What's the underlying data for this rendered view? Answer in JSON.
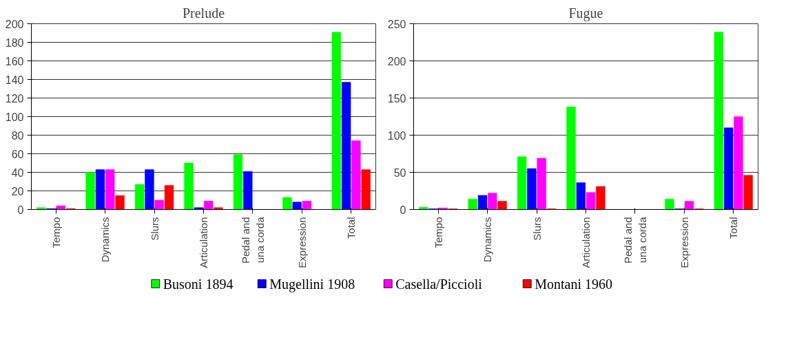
{
  "chart_data": [
    {
      "type": "bar",
      "title": "Prelude",
      "categories": [
        "Tempo",
        "Dynamics",
        "Slurs",
        "Articulation",
        "Pedal and una corda",
        "Expression",
        "Total"
      ],
      "series": [
        {
          "name": "Busoni 1894",
          "color": "#00ff00",
          "values": [
            2,
            40,
            27,
            50,
            59,
            13,
            191
          ]
        },
        {
          "name": "Mugellini 1908",
          "color": "#0000ff",
          "values": [
            1,
            43,
            43,
            2,
            41,
            8,
            137
          ]
        },
        {
          "name": "Casella/Piccioli",
          "color": "#ff00ff",
          "values": [
            4,
            43,
            10,
            9,
            0,
            9,
            74
          ]
        },
        {
          "name": "Montani 1960",
          "color": "#ff0000",
          "values": [
            1,
            15,
            26,
            2,
            0,
            0,
            43
          ]
        }
      ],
      "ylim": [
        0,
        200
      ],
      "yticks": [
        0,
        20,
        40,
        60,
        80,
        100,
        120,
        140,
        160,
        180,
        200
      ],
      "grid": "y",
      "legend": "bottom"
    },
    {
      "type": "bar",
      "title": "Fugue",
      "categories": [
        "Tempo",
        "Dynamics",
        "Slurs",
        "Articulation",
        "Pedal and una corda",
        "Expression",
        "Total"
      ],
      "series": [
        {
          "color": "#00ff00",
          "values": [
            3,
            14,
            71,
            138,
            0,
            14,
            239
          ]
        },
        {
          "color": "#0000ff",
          "values": [
            1,
            19,
            55,
            36,
            0,
            1,
            110
          ]
        },
        {
          "color": "#ff00ff",
          "values": [
            2,
            22,
            69,
            23,
            0,
            11,
            125
          ]
        },
        {
          "color": "#ff0000",
          "values": [
            1,
            11,
            1,
            31,
            0,
            1,
            46
          ]
        }
      ],
      "ylim": [
        0,
        250
      ],
      "yticks": [
        0,
        50,
        100,
        150,
        200,
        250
      ],
      "grid": "y"
    }
  ]
}
